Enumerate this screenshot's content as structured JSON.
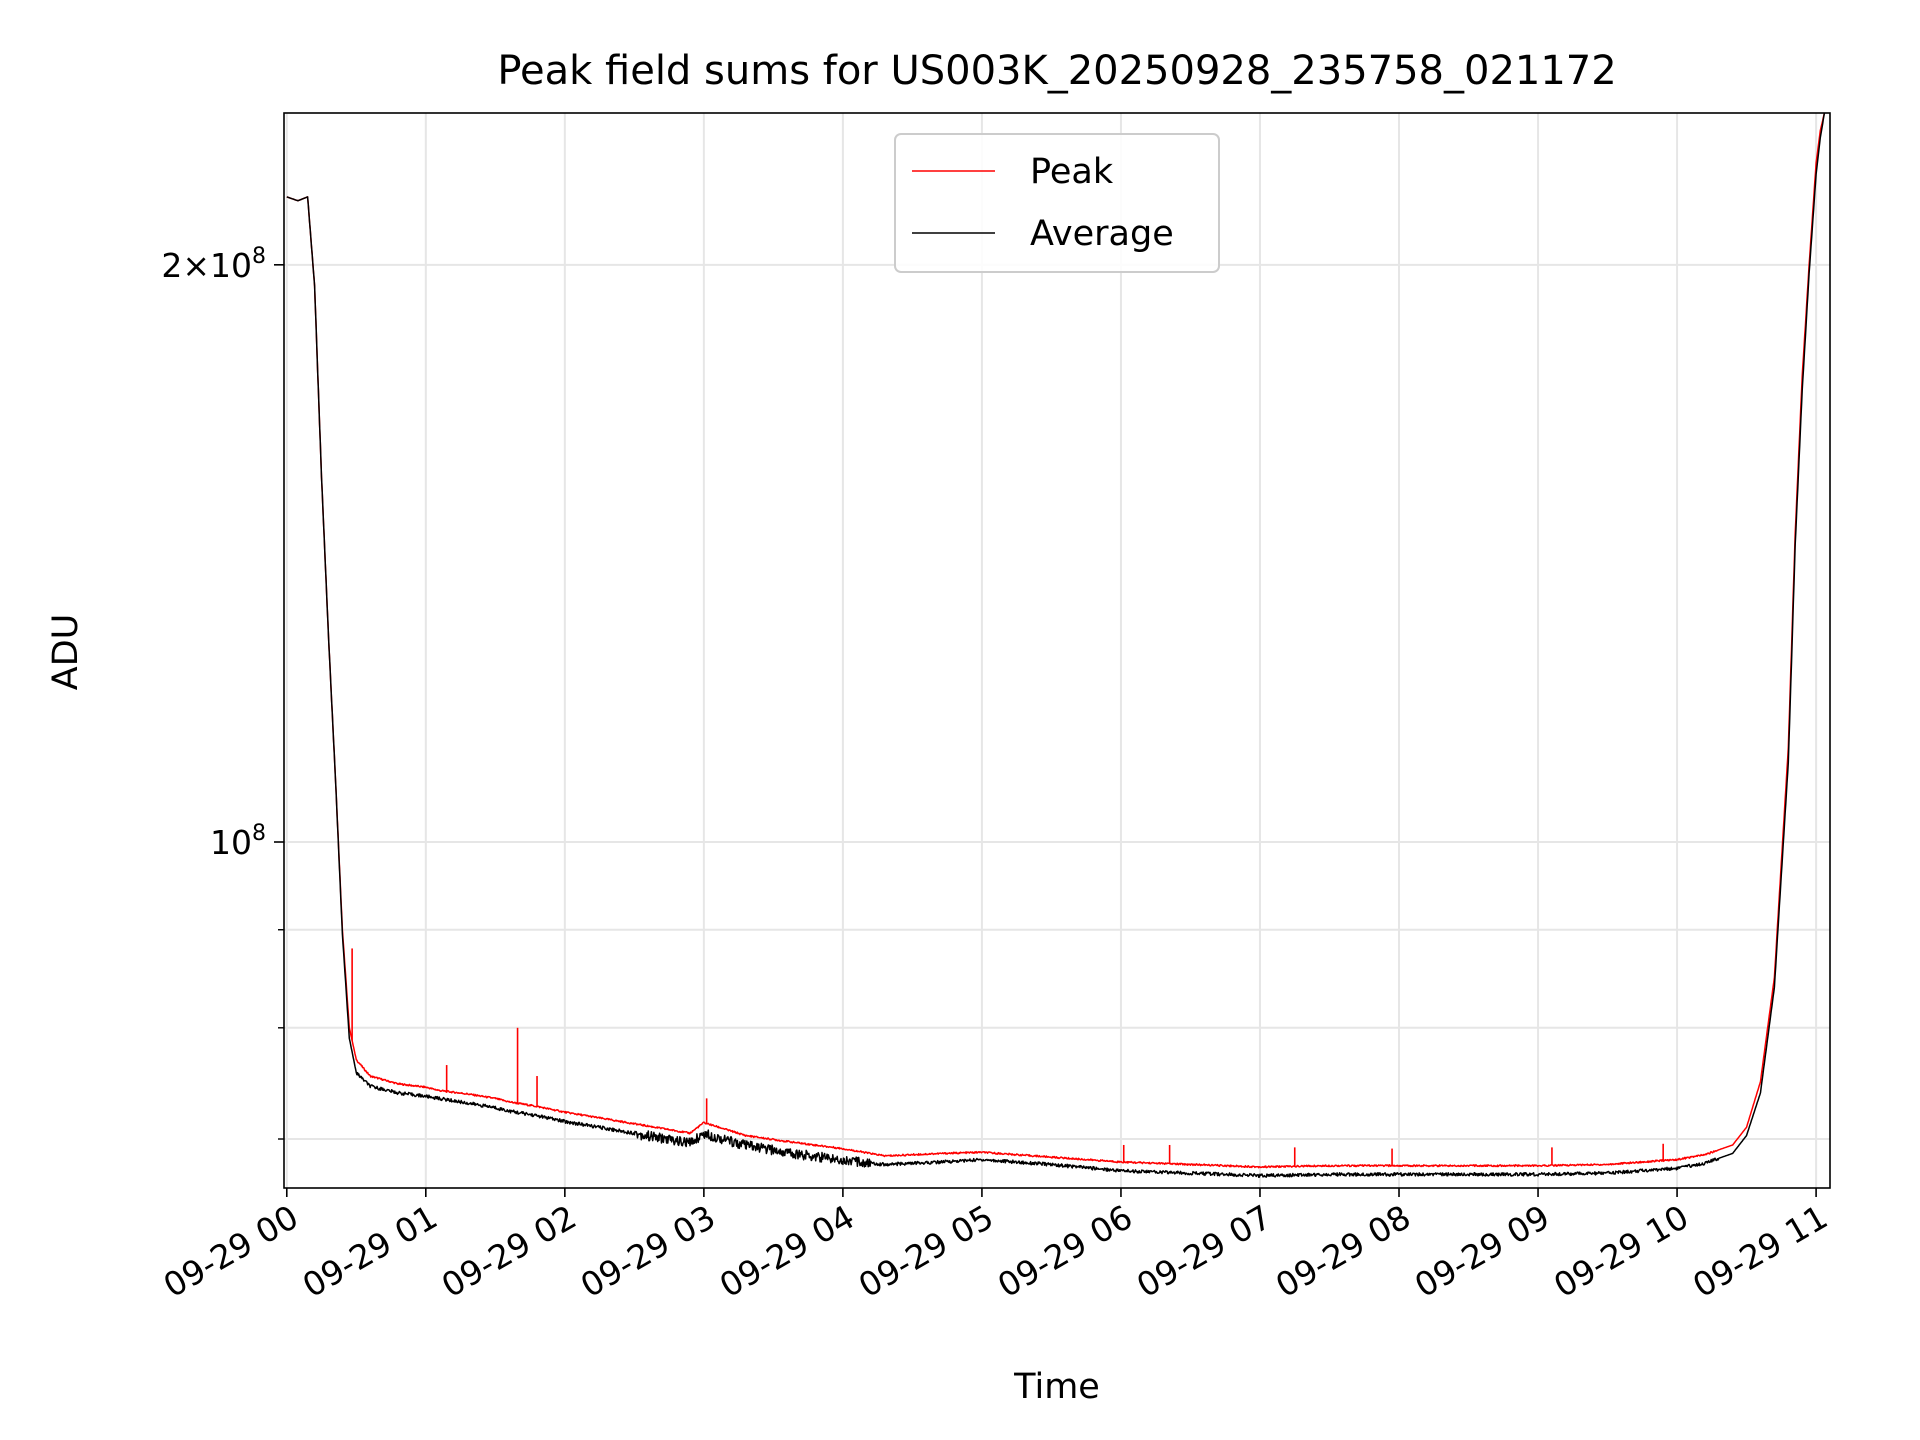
{
  "chart_data": {
    "type": "line",
    "title": "Peak field sums for US003K_20250928_235758_021172",
    "xlabel": "Time",
    "ylabel": "ADU",
    "yscale": "log",
    "ylim": [
      66000000,
      240000000
    ],
    "xlim_hours": [
      -0.02,
      11.1
    ],
    "x_ticks": [
      {
        "hours": 0,
        "label": "09-29 00"
      },
      {
        "hours": 1,
        "label": "09-29 01"
      },
      {
        "hours": 2,
        "label": "09-29 02"
      },
      {
        "hours": 3,
        "label": "09-29 03"
      },
      {
        "hours": 4,
        "label": "09-29 04"
      },
      {
        "hours": 5,
        "label": "09-29 05"
      },
      {
        "hours": 6,
        "label": "09-29 06"
      },
      {
        "hours": 7,
        "label": "09-29 07"
      },
      {
        "hours": 8,
        "label": "09-29 08"
      },
      {
        "hours": 9,
        "label": "09-29 09"
      },
      {
        "hours": 10,
        "label": "09-29 10"
      },
      {
        "hours": 11,
        "label": "09-29 11"
      }
    ],
    "y_major_ticks": [
      {
        "value": 100000000,
        "base": "10",
        "exp": "8",
        "mantissa": ""
      },
      {
        "value": 200000000,
        "base": "10",
        "exp": "8",
        "mantissa": "2"
      }
    ],
    "y_minor_ticks": [
      70000000,
      80000000,
      90000000
    ],
    "legend_position": "upper-center",
    "series": [
      {
        "name": "Peak",
        "color": "#ff0000",
        "x_hours": [
          0,
          0.08,
          0.15,
          0.2,
          0.25,
          0.3,
          0.35,
          0.4,
          0.45,
          0.5,
          0.6,
          0.8,
          1.0,
          1.1,
          1.3,
          1.5,
          1.6,
          1.8,
          2.0,
          2.3,
          2.6,
          2.9,
          3.0,
          3.3,
          3.6,
          4.0,
          4.3,
          4.7,
          5.0,
          5.5,
          6.0,
          6.5,
          7.0,
          7.5,
          8.0,
          8.5,
          9.0,
          9.5,
          10.0,
          10.2,
          10.4,
          10.5,
          10.6,
          10.7,
          10.8,
          10.85,
          10.9,
          10.95,
          11.0,
          11.03,
          11.06
        ],
        "values": [
          217000000,
          216000000,
          217000000,
          195000000,
          155000000,
          128000000,
          108000000,
          90000000,
          80000000,
          77000000,
          75500000,
          74800000,
          74500000,
          74200000,
          73900000,
          73500000,
          73200000,
          72800000,
          72300000,
          71700000,
          71100000,
          70500000,
          71400000,
          70300000,
          69800000,
          69200000,
          68600000,
          68800000,
          68900000,
          68500000,
          68100000,
          67900000,
          67700000,
          67800000,
          67800000,
          67800000,
          67800000,
          67900000,
          68300000,
          68700000,
          69500000,
          71000000,
          75000000,
          85000000,
          112000000,
          145000000,
          175000000,
          200000000,
          226000000,
          235000000,
          240000000
        ]
      },
      {
        "name": "Average",
        "color": "#000000",
        "x_hours": [
          0,
          0.08,
          0.15,
          0.2,
          0.25,
          0.3,
          0.35,
          0.4,
          0.45,
          0.5,
          0.6,
          0.8,
          1.0,
          1.1,
          1.3,
          1.5,
          1.6,
          1.8,
          2.0,
          2.3,
          2.6,
          2.9,
          3.0,
          3.3,
          3.6,
          4.0,
          4.3,
          4.7,
          5.0,
          5.5,
          6.0,
          6.5,
          7.0,
          7.5,
          8.0,
          8.5,
          9.0,
          9.5,
          10.0,
          10.2,
          10.4,
          10.5,
          10.6,
          10.7,
          10.8,
          10.85,
          10.9,
          10.95,
          11.0,
          11.03,
          11.06
        ],
        "values": [
          217000000,
          216000000,
          217000000,
          195000000,
          155000000,
          128000000,
          108000000,
          89500000,
          79000000,
          75800000,
          74600000,
          74000000,
          73700000,
          73500000,
          73100000,
          72700000,
          72400000,
          72000000,
          71500000,
          70900000,
          70300000,
          69700000,
          70500000,
          69500000,
          68900000,
          68300000,
          67900000,
          68100000,
          68300000,
          67900000,
          67400000,
          67200000,
          67000000,
          67100000,
          67100000,
          67100000,
          67100000,
          67200000,
          67600000,
          68000000,
          68800000,
          70300000,
          74000000,
          84000000,
          110000000,
          143000000,
          172000000,
          198000000,
          223000000,
          233000000,
          240000000
        ]
      }
    ],
    "peak_spikes": [
      {
        "hours": 0.47,
        "value": 88000000
      },
      {
        "hours": 1.15,
        "value": 76500000
      },
      {
        "hours": 1.66,
        "value": 80000000
      },
      {
        "hours": 1.8,
        "value": 75500000
      },
      {
        "hours": 3.02,
        "value": 73500000
      },
      {
        "hours": 6.02,
        "value": 69500000
      },
      {
        "hours": 6.35,
        "value": 69500000
      },
      {
        "hours": 7.25,
        "value": 69300000
      },
      {
        "hours": 7.95,
        "value": 69200000
      },
      {
        "hours": 9.1,
        "value": 69300000
      },
      {
        "hours": 9.9,
        "value": 69600000
      }
    ]
  }
}
